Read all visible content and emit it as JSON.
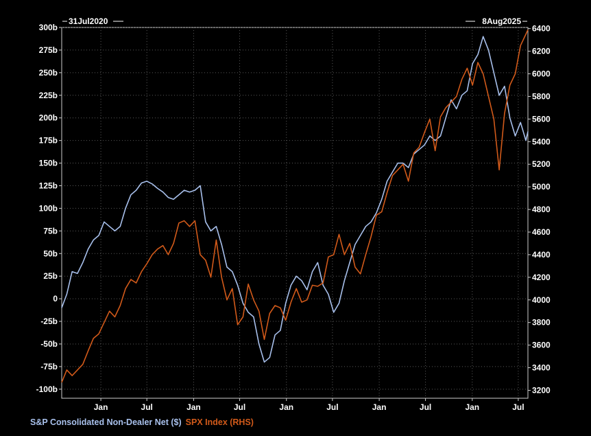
{
  "chart_data": {
    "type": "line",
    "start_label": "31Jul2020",
    "end_label": "8Aug2025",
    "x_tick_labels": [
      "Jan",
      "Jul",
      "Jan",
      "Jul",
      "Jan",
      "Jul",
      "Jan",
      "Jul",
      "Jan",
      "Jul"
    ],
    "x_tick_dates": [
      "2021-01-01",
      "2021-07-01",
      "2022-01-01",
      "2022-07-01",
      "2023-01-01",
      "2023-07-01",
      "2024-01-01",
      "2024-07-01",
      "2025-01-01",
      "2025-07-01"
    ],
    "xlim": [
      "2020-07-31",
      "2025-08-08"
    ],
    "left_axis": {
      "ylim": [
        -110,
        300
      ],
      "tick_values": [
        300,
        275,
        250,
        225,
        200,
        175,
        150,
        125,
        100,
        75,
        50,
        25,
        0,
        -25,
        -50,
        -75,
        -100
      ],
      "tick_labels": [
        "300b",
        "275b",
        "250b",
        "225b",
        "200b",
        "175b",
        "150b",
        "125b",
        "100b",
        "75b",
        "50b",
        "25b",
        "0",
        "-25b",
        "-50b",
        "-75b",
        "-100b"
      ]
    },
    "right_axis": {
      "ylim": [
        3130,
        6410
      ],
      "tick_values": [
        6400,
        6200,
        6000,
        5800,
        5600,
        5400,
        5200,
        5000,
        4800,
        4600,
        4400,
        4200,
        4000,
        3800,
        3600,
        3400,
        3200
      ],
      "tick_labels": [
        "6400",
        "6200",
        "6000",
        "5800",
        "5600",
        "5400",
        "5200",
        "5000",
        "4800",
        "4600",
        "4400",
        "4200",
        "4000",
        "3800",
        "3600",
        "3400",
        "3200"
      ]
    },
    "grid": true,
    "legend_placement": "bottom-left",
    "series": [
      {
        "name": "S&P Consolidated Non-Dealer Net ($)",
        "axis": "left",
        "color": "#a8c0ec",
        "x": [
          "2020-07-31",
          "2020-08-20",
          "2020-09-10",
          "2020-10-01",
          "2020-10-22",
          "2020-11-12",
          "2020-12-03",
          "2020-12-24",
          "2021-01-14",
          "2021-02-04",
          "2021-02-25",
          "2021-03-18",
          "2021-04-08",
          "2021-04-29",
          "2021-05-20",
          "2021-06-10",
          "2021-07-01",
          "2021-07-22",
          "2021-08-12",
          "2021-09-02",
          "2021-09-23",
          "2021-10-14",
          "2021-11-04",
          "2021-11-25",
          "2021-12-16",
          "2022-01-06",
          "2022-01-27",
          "2022-02-17",
          "2022-03-10",
          "2022-03-31",
          "2022-04-21",
          "2022-05-12",
          "2022-06-02",
          "2022-06-23",
          "2022-07-14",
          "2022-08-04",
          "2022-08-25",
          "2022-09-15",
          "2022-10-06",
          "2022-10-27",
          "2022-11-17",
          "2022-12-08",
          "2022-12-29",
          "2023-01-19",
          "2023-02-09",
          "2023-03-02",
          "2023-03-23",
          "2023-04-13",
          "2023-05-04",
          "2023-05-25",
          "2023-06-15",
          "2023-07-06",
          "2023-07-27",
          "2023-08-17",
          "2023-09-07",
          "2023-09-28",
          "2023-10-19",
          "2023-11-09",
          "2023-11-30",
          "2023-12-21",
          "2024-01-11",
          "2024-02-01",
          "2024-02-22",
          "2024-03-14",
          "2024-04-04",
          "2024-04-25",
          "2024-05-16",
          "2024-06-06",
          "2024-06-27",
          "2024-07-18",
          "2024-08-08",
          "2024-08-29",
          "2024-09-19",
          "2024-10-10",
          "2024-10-31",
          "2024-11-21",
          "2024-12-12",
          "2025-01-02",
          "2025-01-23",
          "2025-02-13",
          "2025-03-06",
          "2025-03-27",
          "2025-04-17",
          "2025-05-08",
          "2025-05-29",
          "2025-06-19",
          "2025-07-10",
          "2025-07-31",
          "2025-08-08"
        ],
        "values": [
          -10,
          5,
          30,
          28,
          40,
          55,
          65,
          70,
          85,
          80,
          75,
          80,
          100,
          115,
          120,
          128,
          130,
          127,
          122,
          118,
          112,
          110,
          115,
          120,
          118,
          120,
          125,
          85,
          75,
          80,
          60,
          35,
          30,
          15,
          -5,
          -15,
          -20,
          -50,
          -70,
          -65,
          -40,
          -35,
          -5,
          15,
          25,
          20,
          10,
          30,
          40,
          15,
          5,
          -15,
          -5,
          20,
          40,
          60,
          70,
          80,
          85,
          95,
          110,
          130,
          140,
          150,
          150,
          145,
          160,
          165,
          170,
          180,
          175,
          180,
          200,
          220,
          210,
          225,
          230,
          260,
          270,
          290,
          275,
          250,
          225,
          235,
          200,
          180,
          195,
          175,
          185
        ]
      },
      {
        "name": "SPX Index (RHS)",
        "axis": "right",
        "color": "#d25a1a",
        "x": [
          "2020-07-31",
          "2020-08-20",
          "2020-09-10",
          "2020-10-01",
          "2020-10-22",
          "2020-11-12",
          "2020-12-03",
          "2020-12-24",
          "2021-01-14",
          "2021-02-04",
          "2021-02-25",
          "2021-03-18",
          "2021-04-08",
          "2021-04-29",
          "2021-05-20",
          "2021-06-10",
          "2021-07-01",
          "2021-07-22",
          "2021-08-12",
          "2021-09-02",
          "2021-09-23",
          "2021-10-14",
          "2021-11-04",
          "2021-11-25",
          "2021-12-16",
          "2022-01-06",
          "2022-01-27",
          "2022-02-17",
          "2022-03-10",
          "2022-03-31",
          "2022-04-21",
          "2022-05-12",
          "2022-06-02",
          "2022-06-23",
          "2022-07-14",
          "2022-08-04",
          "2022-08-25",
          "2022-09-15",
          "2022-10-06",
          "2022-10-27",
          "2022-11-17",
          "2022-12-08",
          "2022-12-29",
          "2023-01-19",
          "2023-02-09",
          "2023-03-02",
          "2023-03-23",
          "2023-04-13",
          "2023-05-04",
          "2023-05-25",
          "2023-06-15",
          "2023-07-06",
          "2023-07-27",
          "2023-08-17",
          "2023-09-07",
          "2023-09-28",
          "2023-10-19",
          "2023-11-09",
          "2023-11-30",
          "2023-12-21",
          "2024-01-11",
          "2024-02-01",
          "2024-02-22",
          "2024-03-14",
          "2024-04-04",
          "2024-04-25",
          "2024-05-16",
          "2024-06-06",
          "2024-06-27",
          "2024-07-18",
          "2024-08-08",
          "2024-08-29",
          "2024-09-19",
          "2024-10-10",
          "2024-10-31",
          "2024-11-21",
          "2024-12-12",
          "2025-01-02",
          "2025-01-23",
          "2025-02-13",
          "2025-03-06",
          "2025-03-27",
          "2025-04-17",
          "2025-05-08",
          "2025-05-29",
          "2025-06-19",
          "2025-07-10",
          "2025-07-31",
          "2025-08-08"
        ],
        "values": [
          3270,
          3380,
          3330,
          3380,
          3430,
          3550,
          3660,
          3700,
          3800,
          3900,
          3850,
          3950,
          4100,
          4180,
          4150,
          4250,
          4320,
          4400,
          4450,
          4480,
          4400,
          4500,
          4680,
          4700,
          4650,
          4700,
          4400,
          4350,
          4200,
          4530,
          4200,
          4000,
          4100,
          3780,
          3850,
          4140,
          4000,
          3900,
          3650,
          3880,
          3950,
          3930,
          3820,
          3980,
          4100,
          3980,
          4000,
          4130,
          4120,
          4150,
          4380,
          4400,
          4580,
          4400,
          4500,
          4290,
          4230,
          4400,
          4560,
          4750,
          4780,
          4950,
          5100,
          5150,
          5200,
          5050,
          5300,
          5350,
          5480,
          5600,
          5320,
          5620,
          5700,
          5750,
          5800,
          5950,
          6050,
          5900,
          6100,
          6000,
          5800,
          5600,
          5150,
          5650,
          5900,
          6000,
          6250,
          6350,
          6390
        ]
      }
    ]
  }
}
